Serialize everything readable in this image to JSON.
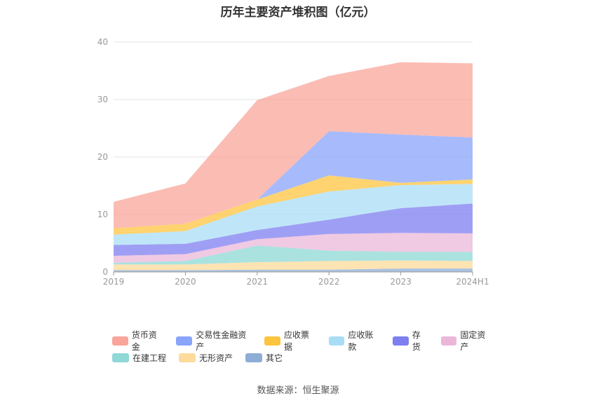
{
  "title": "历年主要资产堆积图（亿元）",
  "source": "数据来源：恒生聚源",
  "chart_data": {
    "type": "area",
    "stacked": true,
    "categories": [
      "2019",
      "2020",
      "2021",
      "2022",
      "2023",
      "2024H1"
    ],
    "ylim": [
      0,
      40
    ],
    "yticks": [
      "0",
      "10",
      "20",
      "30",
      "40"
    ],
    "grid": true,
    "legend_position": "bottom",
    "series": [
      {
        "name": "其它",
        "color": "#8eadd6",
        "values": [
          0.3,
          0.3,
          0.4,
          0.4,
          0.6,
          0.6
        ]
      },
      {
        "name": "无形资产",
        "color": "#fddb9a",
        "values": [
          1.0,
          1.0,
          1.3,
          1.5,
          1.4,
          1.3
        ]
      },
      {
        "name": "在建工程",
        "color": "#8ed8d6",
        "values": [
          0.3,
          0.6,
          2.9,
          1.8,
          1.5,
          1.6
        ]
      },
      {
        "name": "固定资产",
        "color": "#ebb7d9",
        "values": [
          1.2,
          1.2,
          1.1,
          2.9,
          3.3,
          3.2
        ]
      },
      {
        "name": "存货",
        "color": "#7d7ff0",
        "values": [
          1.9,
          1.8,
          1.6,
          2.5,
          4.3,
          5.2
        ]
      },
      {
        "name": "应收账款",
        "color": "#a9ddf5",
        "values": [
          1.8,
          2.2,
          4.1,
          4.9,
          4.0,
          3.4
        ]
      },
      {
        "name": "应收票据",
        "color": "#fdc440",
        "values": [
          1.1,
          1.3,
          1.2,
          2.8,
          0.4,
          0.8
        ]
      },
      {
        "name": "交易性金融资产",
        "color": "#89a4fb",
        "values": [
          0.0,
          0.0,
          0.0,
          7.7,
          8.4,
          7.3
        ]
      },
      {
        "name": "货币资金",
        "color": "#f9a59b",
        "values": [
          4.6,
          7.0,
          17.3,
          9.6,
          12.6,
          12.9
        ]
      }
    ]
  },
  "legend_rows": [
    [
      "货币资金",
      "交易性金融资产",
      "应收票据",
      "应收账款",
      "存货",
      "固定资产"
    ],
    [
      "在建工程",
      "无形资产",
      "其它"
    ]
  ]
}
